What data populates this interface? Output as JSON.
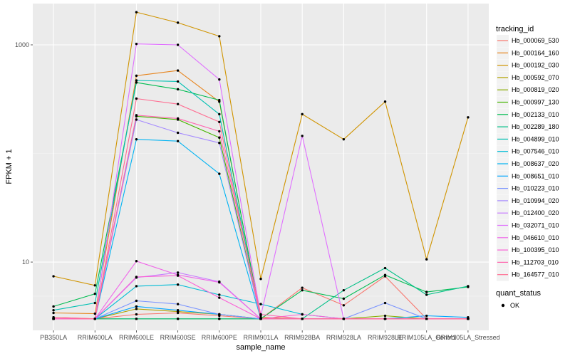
{
  "chart_data": {
    "type": "line",
    "xlabel": "sample_name",
    "ylabel": "FPKM + 1",
    "y_scale": "log10",
    "ylim": [
      2.35,
      2400
    ],
    "y_ticks": [
      10,
      1000
    ],
    "y_tick_labels": [
      "10",
      "1000"
    ],
    "categories": [
      "PB350LA",
      "RRIM600LA",
      "RRIM600LE",
      "RRIM600SE",
      "RRIM600PE",
      "RRIM901LA",
      "RRIM928BA",
      "RRIM928LA",
      "RRIM928LE",
      "RRIM105LA_Control",
      "RRIM105LA_Stressed"
    ],
    "legend": {
      "title": "tracking_id",
      "position": "right",
      "point_title": "quant_status",
      "point_label": "OK"
    },
    "background": "#ebebeb",
    "grid": true,
    "series": [
      {
        "name": "Hb_000069_530",
        "color": "#F8766D",
        "values": [
          3.1,
          3.0,
          3.3,
          3.4,
          3.2,
          3.0,
          5.8,
          4.0,
          7.4,
          3.0,
          3.0
        ]
      },
      {
        "name": "Hb_000164_160",
        "color": "#E7851E",
        "values": [
          3.4,
          3.35,
          520,
          580,
          300,
          3.1,
          3.0,
          3.0,
          3.0,
          3.0,
          3.0
        ]
      },
      {
        "name": "Hb_000192_030",
        "color": "#D09400",
        "values": [
          7.4,
          6.1,
          2000,
          1600,
          1200,
          7.0,
          230,
          135,
          300,
          10.6,
          215
        ]
      },
      {
        "name": "Hb_000592_070",
        "color": "#B2A100",
        "values": [
          3.0,
          3.0,
          3.7,
          3.5,
          3.3,
          3.0,
          3.0,
          3.0,
          3.0,
          3.0,
          3.0
        ]
      },
      {
        "name": "Hb_000819_020",
        "color": "#89AC00",
        "values": [
          3.0,
          3.0,
          3.0,
          3.0,
          3.0,
          3.0,
          3.0,
          3.0,
          3.2,
          3.0,
          3.0
        ]
      },
      {
        "name": "Hb_000997_130",
        "color": "#45B500",
        "values": [
          3.0,
          3.0,
          220,
          205,
          140,
          3.0,
          3.0,
          3.0,
          3.0,
          3.0,
          3.0
        ]
      },
      {
        "name": "Hb_002133_010",
        "color": "#00BC51",
        "values": [
          3.9,
          5.1,
          450,
          390,
          310,
          3.0,
          5.5,
          4.6,
          7.6,
          5.3,
          5.9
        ]
      },
      {
        "name": "Hb_002289_180",
        "color": "#00C087",
        "values": [
          3.0,
          3.0,
          3.0,
          3.0,
          3.0,
          3.0,
          3.0,
          5.5,
          8.8,
          5.0,
          6.0
        ]
      },
      {
        "name": "Hb_004899_010",
        "color": "#00C0B2",
        "values": [
          3.6,
          4.2,
          470,
          460,
          230,
          3.0,
          3.0,
          3.0,
          3.0,
          3.0,
          3.0
        ]
      },
      {
        "name": "Hb_007546_010",
        "color": "#00BCD6",
        "values": [
          3.0,
          3.0,
          6.0,
          6.2,
          5.0,
          4.1,
          3.3,
          3.0,
          3.0,
          3.0,
          3.0
        ]
      },
      {
        "name": "Hb_008637_020",
        "color": "#00B3F2",
        "values": [
          3.0,
          3.0,
          135,
          130,
          65,
          3.0,
          3.0,
          3.0,
          3.0,
          3.0,
          3.0
        ]
      },
      {
        "name": "Hb_008651_010",
        "color": "#00A6FF",
        "values": [
          3.0,
          3.0,
          3.9,
          3.6,
          3.3,
          3.0,
          3.0,
          3.0,
          3.0,
          3.2,
          3.1
        ]
      },
      {
        "name": "Hb_010223_010",
        "color": "#7B95FF",
        "values": [
          3.0,
          3.0,
          4.4,
          4.1,
          3.3,
          3.0,
          3.0,
          3.0,
          4.2,
          3.0,
          3.0
        ]
      },
      {
        "name": "Hb_010994_020",
        "color": "#A58AFF",
        "values": [
          3.0,
          3.0,
          205,
          155,
          125,
          3.0,
          3.0,
          3.0,
          3.0,
          3.0,
          3.0
        ]
      },
      {
        "name": "Hb_012400_020",
        "color": "#C77CFF",
        "values": [
          3.0,
          3.0,
          7.2,
          8.0,
          6.6,
          3.0,
          3.0,
          3.0,
          3.0,
          3.0,
          3.0
        ]
      },
      {
        "name": "Hb_032071_010",
        "color": "#E06FFF",
        "values": [
          3.0,
          3.0,
          1020,
          1000,
          480,
          3.2,
          145,
          3.0,
          3.0,
          3.0,
          3.0
        ]
      },
      {
        "name": "Hb_046610_010",
        "color": "#F066E9",
        "values": [
          3.0,
          3.0,
          10.2,
          7.6,
          6.5,
          3.0,
          3.0,
          3.0,
          3.0,
          3.0,
          3.0
        ]
      },
      {
        "name": "Hb_100395_010",
        "color": "#FB61D7",
        "values": [
          3.0,
          3.0,
          7.3,
          7.5,
          4.7,
          3.0,
          3.3,
          3.0,
          3.0,
          3.0,
          3.0
        ]
      },
      {
        "name": "Hb_112703_010",
        "color": "#FF65AE",
        "values": [
          3.0,
          3.0,
          225,
          210,
          160,
          3.3,
          3.0,
          3.0,
          3.0,
          3.0,
          3.0
        ]
      },
      {
        "name": "Hb_164577_010",
        "color": "#FF6C91",
        "values": [
          3.1,
          3.0,
          320,
          285,
          195,
          3.0,
          3.0,
          3.0,
          3.0,
          3.0,
          3.0
        ]
      }
    ]
  }
}
